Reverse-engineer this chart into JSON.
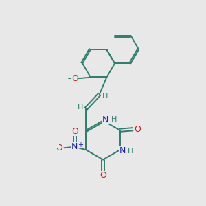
{
  "bg_color": "#e8e8e8",
  "bond_color": "#2d7d6e",
  "n_color": "#1a1acc",
  "o_color": "#cc1a1a",
  "lw": 1.4,
  "dbo": 0.07
}
